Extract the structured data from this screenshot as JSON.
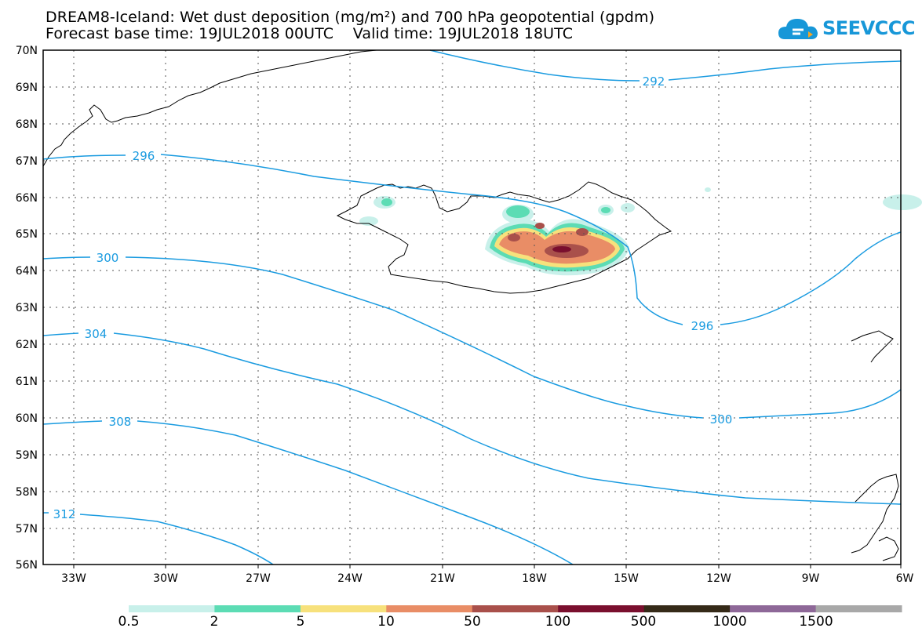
{
  "title_line1": "DREAM8-Iceland: Wet dust deposition (mg/m²) and 700 hPa geopotential (gpdm)",
  "title_line2": "Forecast base time: 19JUL2018 00UTC    Valid time: 19JUL2018 18UTC",
  "logo_text": "SEEVCCC",
  "map": {
    "lon_range": [
      -34.0,
      -6.0
    ],
    "lat_range": [
      56.0,
      70.0
    ],
    "grid": "dotted",
    "x_ticks": [
      "33W",
      "30W",
      "27W",
      "24W",
      "21W",
      "18W",
      "15W",
      "12W",
      "9W",
      "6W"
    ],
    "y_ticks": [
      "70N",
      "69N",
      "68N",
      "67N",
      "66N",
      "65N",
      "64N",
      "63N",
      "62N",
      "61N",
      "60N",
      "59N",
      "58N",
      "57N",
      "56N"
    ],
    "contour_labels": [
      "292",
      "296",
      "300",
      "304",
      "308",
      "312",
      "296",
      "300"
    ]
  },
  "legend": {
    "labels": [
      "0.5",
      "2",
      "5",
      "10",
      "50",
      "100",
      "500",
      "1000",
      "1500"
    ],
    "colors": [
      "#c8f0ea",
      "#5cdcb4",
      "#f7e17c",
      "#e98d66",
      "#a9504b",
      "#7a0f2e",
      "#352a18",
      "#8e6898",
      "#a8a8a8"
    ]
  }
}
